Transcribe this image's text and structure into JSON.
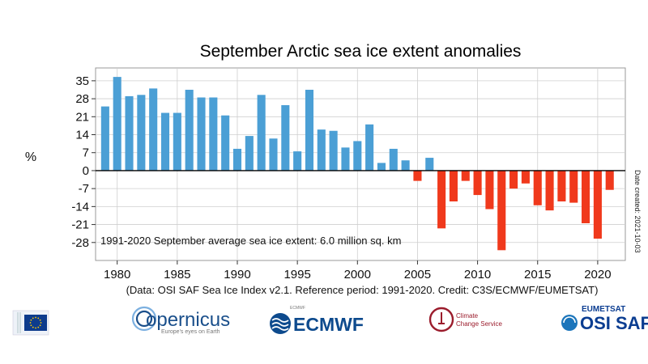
{
  "chart_data": {
    "type": "bar",
    "title": "September Arctic sea ice extent anomalies",
    "ylabel": "%",
    "xlabel": "",
    "ylim": [
      -35,
      40
    ],
    "xlim": [
      1978.2,
      2022.3
    ],
    "yticks": [
      35,
      28,
      21,
      14,
      7,
      0,
      -7,
      -14,
      -21,
      -28
    ],
    "xticks": [
      1980,
      1985,
      1990,
      1995,
      2000,
      2005,
      2010,
      2015,
      2020
    ],
    "positive_color": "#4b9fd5",
    "negative_color": "#f0391c",
    "x": [
      1979,
      1980,
      1981,
      1982,
      1983,
      1984,
      1985,
      1986,
      1987,
      1988,
      1989,
      1990,
      1991,
      1992,
      1993,
      1994,
      1995,
      1996,
      1997,
      1998,
      1999,
      2000,
      2001,
      2002,
      2003,
      2004,
      2005,
      2006,
      2007,
      2008,
      2009,
      2010,
      2011,
      2012,
      2013,
      2014,
      2015,
      2016,
      2017,
      2018,
      2019,
      2020,
      2021
    ],
    "values": [
      25,
      36.5,
      29,
      29.5,
      32,
      22.5,
      22.5,
      31.5,
      28.5,
      28.5,
      21.5,
      8.5,
      13.5,
      29.5,
      12.5,
      25.5,
      7.5,
      31.5,
      16,
      15.5,
      9,
      11.5,
      18,
      3,
      8.5,
      4,
      -4,
      5,
      -22.5,
      -12,
      -4,
      -9.5,
      -15,
      -31,
      -7,
      -5,
      -13.5,
      -15.5,
      -12,
      -12.5,
      -20.5,
      -26.5,
      -7.5
    ],
    "annotation": "1991-2020 September average sea ice extent: 6.0 million sq. km",
    "side_note": "Date created: 2021-10-03",
    "credit": "(Data: OSI SAF Sea Ice Index v2.1.  Reference period: 1991-2020.  Credit: C3S/ECMWF/EUMETSAT)"
  },
  "logos": {
    "eu": "EU flag",
    "copernicus_name": "opernicus",
    "copernicus_tagline": "Europe's eyes on Earth",
    "ecmwf": "ECMWF",
    "ecmwf_small": "ECMWF",
    "c3s_line1": "Climate",
    "c3s_line2": "Change Service",
    "eumetsat": "EUMETSAT",
    "osisaf": "OSI SAF",
    "blue": "#0b3d91",
    "eu_blue": "#0d3b8c",
    "eu_yellow": "#ffcc00",
    "copernicus_blue": "#1a4f8b",
    "ecmwf_blue": "#0d4a8d",
    "c3s_red": "#9b1c2c",
    "osisaf_blue": "#1b75bb"
  }
}
